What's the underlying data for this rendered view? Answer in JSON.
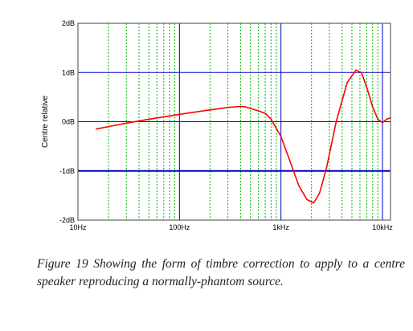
{
  "chart_data": {
    "type": "line",
    "title": "",
    "xlabel": "",
    "ylabel": "Centre relative",
    "xscale": "log",
    "xlim": [
      10,
      12000
    ],
    "ylim": [
      -2,
      2
    ],
    "x_ticks": [
      {
        "value": 10,
        "label": "10Hz"
      },
      {
        "value": 100,
        "label": "100Hz"
      },
      {
        "value": 1000,
        "label": "1kHz"
      },
      {
        "value": 10000,
        "label": "10kHz"
      }
    ],
    "y_ticks": [
      {
        "value": 2,
        "label": "2dB"
      },
      {
        "value": 1,
        "label": "1dB"
      },
      {
        "value": 0,
        "label": "0dB"
      },
      {
        "value": -1,
        "label": "-1dB"
      },
      {
        "value": -2,
        "label": "-2dB"
      }
    ],
    "grid": true,
    "colors": {
      "major_grid": "#0000cc",
      "minor_grid": "#00bb00",
      "series": "#ff0000"
    },
    "series": [
      {
        "points": [
          [
            15,
            -0.15
          ],
          [
            20,
            -0.1
          ],
          [
            30,
            -0.03
          ],
          [
            50,
            0.05
          ],
          [
            100,
            0.15
          ],
          [
            200,
            0.24
          ],
          [
            300,
            0.29
          ],
          [
            400,
            0.31
          ],
          [
            450,
            0.3
          ],
          [
            600,
            0.22
          ],
          [
            700,
            0.17
          ],
          [
            800,
            0.05
          ],
          [
            1000,
            -0.3
          ],
          [
            1200,
            -0.75
          ],
          [
            1500,
            -1.3
          ],
          [
            1800,
            -1.58
          ],
          [
            2100,
            -1.65
          ],
          [
            2400,
            -1.45
          ],
          [
            2800,
            -0.95
          ],
          [
            3500,
            0.0
          ],
          [
            4500,
            0.8
          ],
          [
            5500,
            1.05
          ],
          [
            6200,
            1.0
          ],
          [
            7000,
            0.7
          ],
          [
            8000,
            0.3
          ],
          [
            9000,
            0.05
          ],
          [
            10000,
            -0.02
          ],
          [
            11000,
            0.05
          ],
          [
            12000,
            0.08
          ]
        ]
      }
    ]
  },
  "caption": "Figure 19  Showing the form of timbre correction to apply to a centre speaker reproducing a normally-phantom source."
}
